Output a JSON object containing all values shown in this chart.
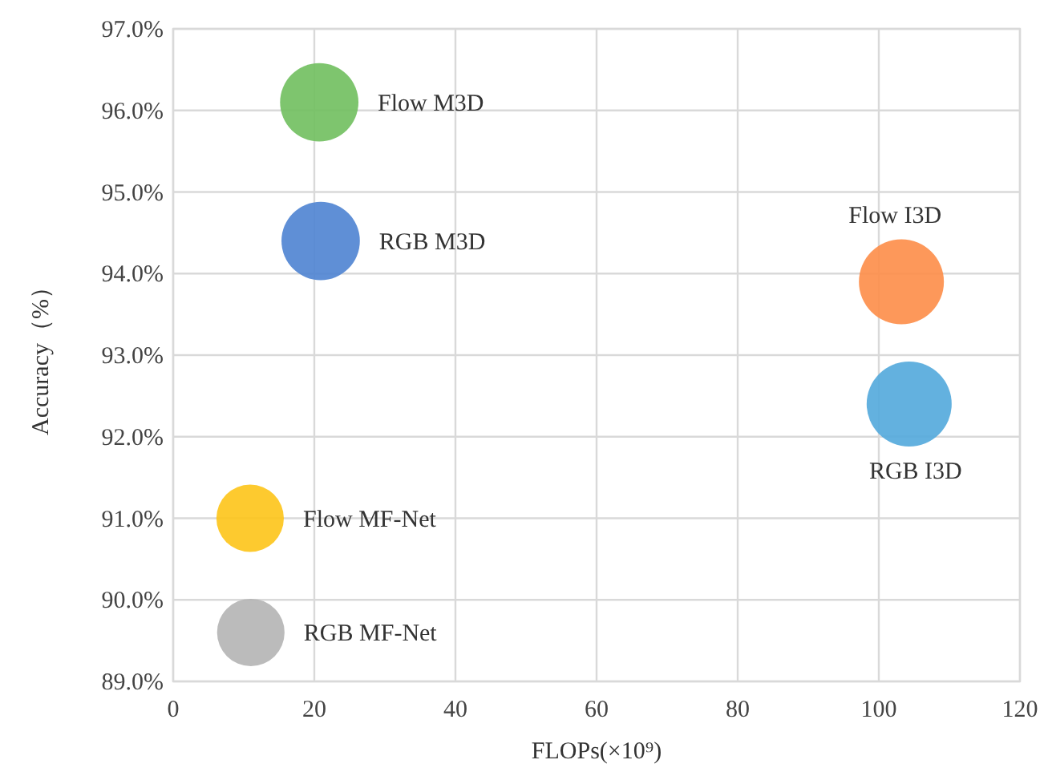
{
  "chart_data": {
    "type": "bubble",
    "xlabel": "FLOPs(×10⁹)",
    "ylabel": "Accuracy（%）",
    "xlim": [
      0,
      120
    ],
    "xticks": [
      0,
      20,
      40,
      60,
      80,
      100,
      120
    ],
    "ylim": [
      89,
      97
    ],
    "yticks": [
      {
        "value": 89,
        "label": "89.0%"
      },
      {
        "value": 90,
        "label": "90.0%"
      },
      {
        "value": 91,
        "label": "91.0%"
      },
      {
        "value": 92,
        "label": "92.0%"
      },
      {
        "value": 93,
        "label": "93.0%"
      },
      {
        "value": 94,
        "label": "94.0%"
      },
      {
        "value": 95,
        "label": "95.0%"
      },
      {
        "value": 96,
        "label": "96.0%"
      },
      {
        "value": 97,
        "label": "97.0%"
      }
    ],
    "grid": true,
    "series": [
      {
        "name": "Flow M3D",
        "color": "#70bf5e",
        "x": [
          20.7
        ],
        "values": [
          96.1
        ],
        "sizes": [
          0.85
        ]
      },
      {
        "name": "RGB M3D",
        "color": "#4e83d2",
        "x": [
          20.9
        ],
        "values": [
          94.4
        ],
        "sizes": [
          0.85
        ]
      },
      {
        "name": "Flow I3D",
        "color": "#fd8d48",
        "x": [
          103.2
        ],
        "values": [
          93.9
        ],
        "sizes": [
          1
        ]
      },
      {
        "name": "RGB I3D",
        "color": "#52a8dc",
        "x": [
          104.3
        ],
        "values": [
          92.4
        ],
        "sizes": [
          1
        ]
      },
      {
        "name": "Flow MF-Net",
        "color": "#fdc418",
        "x": [
          10.9
        ],
        "values": [
          91.0
        ],
        "sizes": [
          0.63
        ]
      },
      {
        "name": "RGB MF-Net",
        "color": "#b4b4b4",
        "x": [
          11.0
        ],
        "values": [
          89.6
        ],
        "sizes": [
          0.63
        ]
      }
    ]
  }
}
